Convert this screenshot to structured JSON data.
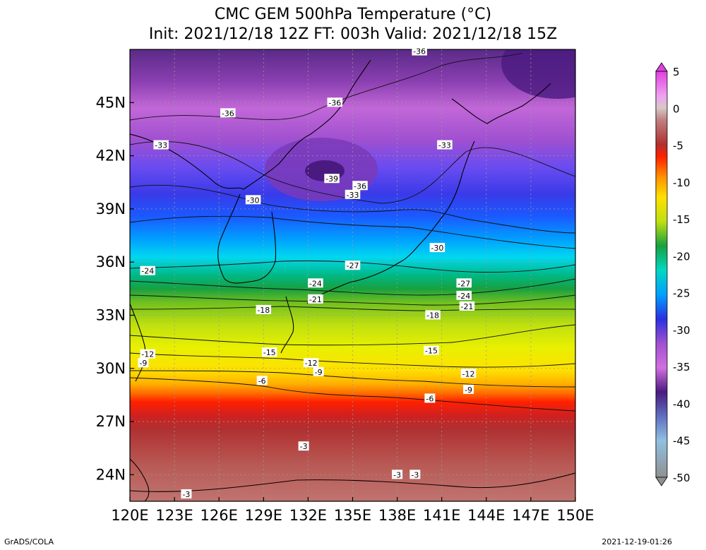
{
  "title_line1": "CMC GEM 500hPa Temperature (°C)",
  "title_line2": "Init: 2021/12/18 12Z  FT: 003h  Valid: 2021/12/18 15Z",
  "footer_left": "GrADS/COLA",
  "footer_right": "2021-12-19-01:26",
  "lon_ticks": [
    "120E",
    "123E",
    "126E",
    "129E",
    "132E",
    "135E",
    "138E",
    "141E",
    "144E",
    "147E",
    "150E"
  ],
  "lat_ticks": [
    "24N",
    "27N",
    "30N",
    "33N",
    "36N",
    "39N",
    "42N",
    "45N"
  ],
  "colorbar": {
    "labels": [
      "5",
      "0",
      "-5",
      "-10",
      "-15",
      "-20",
      "-25",
      "-30",
      "-35",
      "-40",
      "-45",
      "-50"
    ]
  },
  "contour_labels": [
    {
      "text": "-36",
      "lon": 139.5,
      "lat": 47.9
    },
    {
      "text": "-36",
      "lon": 126.6,
      "lat": 44.4
    },
    {
      "text": "-36",
      "lon": 133.8,
      "lat": 45.0
    },
    {
      "text": "-33",
      "lon": 122.1,
      "lat": 42.6
    },
    {
      "text": "-33",
      "lon": 141.2,
      "lat": 42.6
    },
    {
      "text": "-39",
      "lon": 133.6,
      "lat": 40.7
    },
    {
      "text": "-36",
      "lon": 135.5,
      "lat": 40.3
    },
    {
      "text": "-33",
      "lon": 135.0,
      "lat": 39.8
    },
    {
      "text": "-30",
      "lon": 128.3,
      "lat": 39.5
    },
    {
      "text": "-30",
      "lon": 140.7,
      "lat": 36.8
    },
    {
      "text": "-24",
      "lon": 121.2,
      "lat": 35.5
    },
    {
      "text": "-27",
      "lon": 135.0,
      "lat": 35.8
    },
    {
      "text": "-24",
      "lon": 132.5,
      "lat": 34.8
    },
    {
      "text": "-27",
      "lon": 142.5,
      "lat": 34.8
    },
    {
      "text": "-24",
      "lon": 142.5,
      "lat": 34.1
    },
    {
      "text": "-21",
      "lon": 132.5,
      "lat": 33.9
    },
    {
      "text": "-21",
      "lon": 142.7,
      "lat": 33.5
    },
    {
      "text": "-18",
      "lon": 129.0,
      "lat": 33.3
    },
    {
      "text": "-18",
      "lon": 140.4,
      "lat": 33.0
    },
    {
      "text": "-15",
      "lon": 129.4,
      "lat": 30.9
    },
    {
      "text": "-15",
      "lon": 140.3,
      "lat": 31.0
    },
    {
      "text": "-12",
      "lon": 121.2,
      "lat": 30.8
    },
    {
      "text": "-12",
      "lon": 132.2,
      "lat": 30.3
    },
    {
      "text": "-9",
      "lon": 120.9,
      "lat": 30.3
    },
    {
      "text": "-9",
      "lon": 132.7,
      "lat": 29.8
    },
    {
      "text": "-12",
      "lon": 142.8,
      "lat": 29.7
    },
    {
      "text": "-6",
      "lon": 128.9,
      "lat": 29.3
    },
    {
      "text": "-9",
      "lon": 142.8,
      "lat": 28.8
    },
    {
      "text": "-6",
      "lon": 140.2,
      "lat": 28.3
    },
    {
      "text": "-3",
      "lon": 131.7,
      "lat": 25.6
    },
    {
      "text": "-3",
      "lon": 138.0,
      "lat": 24.0
    },
    {
      "text": "-3",
      "lon": 139.2,
      "lat": 24.0
    },
    {
      "text": "-3",
      "lon": 123.8,
      "lat": 22.9
    }
  ]
}
